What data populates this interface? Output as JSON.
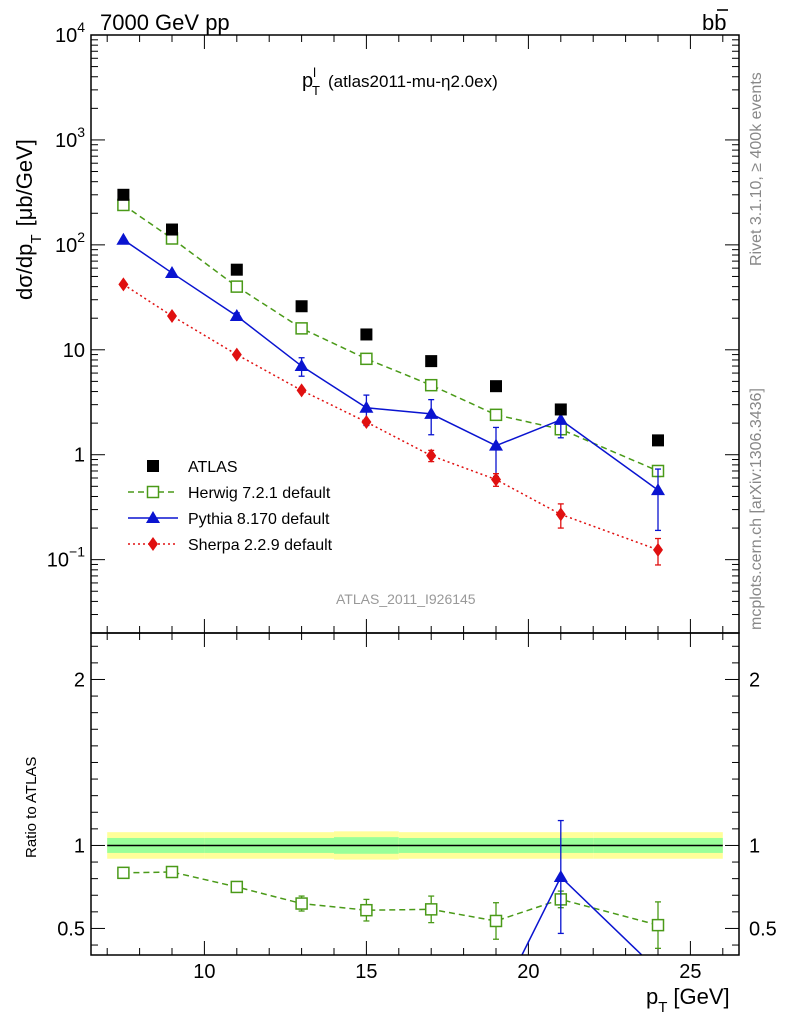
{
  "header": {
    "left": "7000 GeV pp",
    "right_main": "b",
    "right_bar": "b"
  },
  "side_labels": {
    "rivet": "Rivet 3.1.10, ≥ 400k events",
    "mcplots": "mcplots.cern.ch [arXiv:1306.3436]"
  },
  "chart_data": [
    {
      "type": "scatter",
      "title_main": "p",
      "title_sup": "l",
      "title_sub": "T",
      "title_rest": "(atlas2011-mu-η2.0ex)",
      "ylabel_parts": {
        "a": "dσ/dp",
        "sub": "T",
        "b": "[μb/GeV]"
      },
      "watermark": "ATLAS_2011_I926145",
      "yscale": "log",
      "ylim": [
        0.02,
        10000
      ],
      "xlim": [
        6.5,
        26.5
      ],
      "y_ticks": [
        {
          "v": 10000,
          "base": "10",
          "exp": "4"
        },
        {
          "v": 1000,
          "base": "10",
          "exp": "3"
        },
        {
          "v": 100,
          "base": "10",
          "exp": "2"
        },
        {
          "v": 10,
          "base": "10",
          "exp": ""
        },
        {
          "v": 1,
          "base": "1",
          "exp": ""
        },
        {
          "v": 0.1,
          "base": "10",
          "exp": "−1"
        }
      ],
      "legend_position": "bottom-left",
      "legend": [
        {
          "key": "atlas",
          "label": "ATLAS"
        },
        {
          "key": "herwig",
          "label": "Herwig 7.2.1 default"
        },
        {
          "key": "pythia",
          "label": "Pythia 8.170 default"
        },
        {
          "key": "sherpa",
          "label": "Sherpa 2.2.9 default"
        }
      ],
      "series": {
        "atlas": {
          "color": "#000000",
          "marker": "square-filled",
          "x": [
            7.5,
            9,
            11,
            13,
            15,
            17,
            19,
            21,
            24
          ],
          "y": [
            300,
            140,
            58,
            26,
            14,
            7.8,
            4.5,
            2.7,
            1.37
          ]
        },
        "herwig": {
          "color": "#4a9a18",
          "marker": "square-open",
          "line": "dashed",
          "x": [
            7.5,
            9,
            11,
            13,
            15,
            17,
            19,
            21,
            24
          ],
          "y": [
            240,
            115,
            40,
            16,
            8.2,
            4.6,
            2.4,
            1.75,
            0.7
          ],
          "err": [
            0,
            0,
            0,
            0,
            0,
            0,
            0.2,
            0.15,
            0.08
          ]
        },
        "pythia": {
          "color": "#0a14d0",
          "marker": "triangle",
          "line": "solid",
          "x": [
            7.5,
            9,
            11,
            13,
            15,
            17,
            19,
            21,
            24
          ],
          "y": [
            112,
            54,
            21,
            7,
            2.8,
            2.45,
            1.22,
            2.15,
            0.46
          ],
          "err": [
            0,
            0,
            1.5,
            1.4,
            0.9,
            0.9,
            0.6,
            0.7,
            0.27
          ]
        },
        "sherpa": {
          "color": "#e01010",
          "marker": "diamond",
          "line": "dotted",
          "x": [
            7.5,
            9,
            11,
            13,
            15,
            17,
            19,
            21,
            24
          ],
          "y": [
            42,
            21,
            9,
            4.1,
            2.05,
            0.98,
            0.58,
            0.27,
            0.124
          ],
          "err": [
            0,
            0,
            0,
            0,
            0,
            0.12,
            0.08,
            0.07,
            0.035
          ]
        }
      }
    },
    {
      "type": "scatter",
      "ylabel": "Ratio to ATLAS",
      "xlabel_parts": {
        "a": "p",
        "sub": "T",
        "b": "[GeV]"
      },
      "ylim": [
        0.34,
        2.28
      ],
      "xlim": [
        6.5,
        26.5
      ],
      "x_ticks": [
        10,
        15,
        20,
        25
      ],
      "y_ticks": [
        0.5,
        1,
        2
      ],
      "y_tick_labels": [
        "0.5",
        "1",
        "2"
      ],
      "bands": {
        "edges": [
          7,
          10,
          14,
          16,
          22,
          26
        ],
        "outer_half": [
          0.08,
          0.08,
          0.085,
          0.08,
          0.08
        ],
        "inner_half": [
          0.045,
          0.045,
          0.05,
          0.045,
          0.045
        ],
        "outer_color": "#ffff99",
        "inner_color": "#99ff99"
      },
      "series": {
        "herwig": {
          "color": "#4a9a18",
          "marker": "square-open",
          "line": "dashed",
          "x": [
            7.5,
            9,
            11,
            13,
            15,
            17,
            19,
            21,
            24
          ],
          "y": [
            0.835,
            0.84,
            0.75,
            0.65,
            0.61,
            0.615,
            0.545,
            0.675,
            0.52
          ],
          "err": [
            0.01,
            0.01,
            0.02,
            0.045,
            0.065,
            0.08,
            0.11,
            0.05,
            0.14
          ]
        },
        "pythia": {
          "color": "#0a14d0",
          "marker": "triangle",
          "line": "solid",
          "x": [
            19.8,
            21,
            23.5
          ],
          "y": [
            0.34,
            0.81,
            0.34
          ],
          "err": [
            0,
            0.34,
            0
          ],
          "markers": [
            false,
            true,
            false
          ]
        }
      }
    }
  ]
}
